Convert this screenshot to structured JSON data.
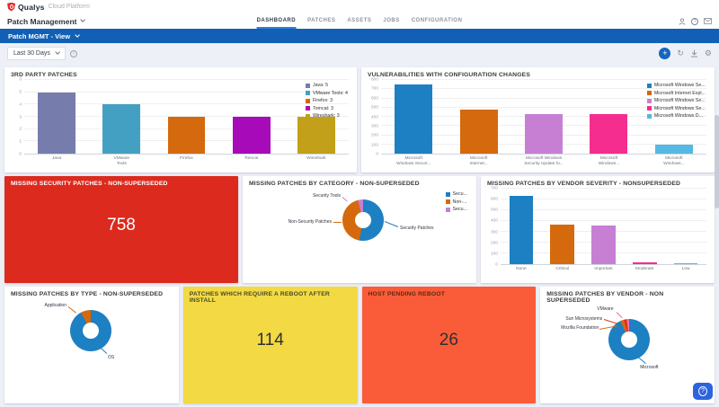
{
  "header": {
    "brand": "Qualys",
    "brand_suffix": "Cloud Platform",
    "app_name": "Patch Management",
    "tabs": [
      {
        "label": "DASHBOARD",
        "active": true
      },
      {
        "label": "PATCHES",
        "active": false
      },
      {
        "label": "ASSETS",
        "active": false
      },
      {
        "label": "JOBS",
        "active": false
      },
      {
        "label": "CONFIGURATION",
        "active": false
      }
    ],
    "view_bar": "Patch MGMT - View",
    "help_icon": "?"
  },
  "filter": {
    "date_range": "Last 30 Days",
    "info_icon": "i",
    "add_label": "+",
    "refresh_icon": "↻",
    "gear_icon": "⚙"
  },
  "colors": {
    "view_bar_blue": "#1160b6",
    "tab_active_underline": "#2e7fd6",
    "series_blue": "#1d80c3",
    "series_orange": "#d5690d",
    "series_orchid": "#c77fd4",
    "series_pink": "#f52d8e",
    "series_cyan": "#55b9e3"
  },
  "widgets": {
    "third_party": {
      "title": "3RD PARTY PATCHES",
      "type": "bar",
      "ymax": 6,
      "yticks": [
        0,
        1,
        2,
        3,
        4,
        5,
        6
      ],
      "categories": [
        "Java",
        "VMware\nTools",
        "Firefox",
        "Tomcat",
        "Wireshark"
      ],
      "values": [
        5,
        4,
        3,
        3,
        3
      ],
      "colors": [
        "#767cab",
        "#44a0c3",
        "#d5690d",
        "#a70ab8",
        "#c2a019"
      ],
      "legend": [
        "Java: 5",
        "VMware Tools: 4",
        "Firefox: 3",
        "Tomcat: 3",
        "Wireshark: 3"
      ]
    },
    "vuln_config": {
      "title": "VULNERABILITIES WITH CONFIGURATION CHANGES",
      "type": "bar",
      "ymax": 800,
      "yticks": [
        0,
        100,
        200,
        300,
        400,
        500,
        600,
        700,
        800
      ],
      "categories": [
        "Microsoft\nWindows Securi...",
        "Microsoft\nInternet...",
        "Microsoft Windows\nSecurity Update fo...",
        "Microsoft\nWindows...",
        "Microsoft\nWindows..."
      ],
      "values": [
        750,
        480,
        430,
        430,
        100
      ],
      "colors": [
        "#1d80c3",
        "#d5690d",
        "#c77fd4",
        "#f52d8e",
        "#55b9e3"
      ],
      "legend": [
        "Microsoft Windows Se...",
        "Microsoft Internet Expl...",
        "Microsoft Windows Se...",
        "Microsoft Windows Se...",
        "Microsoft Windows D..."
      ]
    },
    "missing_security": {
      "title": "MISSING SECURITY PATCHES - NON-SUPERSEDED",
      "value": "758",
      "bg": "#dc2a1e",
      "title_color": "#ffffff",
      "num_color": "#ffffff"
    },
    "category": {
      "title": "MISSING PATCHES BY CATEGORY - NON-SUPERSEDED",
      "type": "donut",
      "slices": [
        {
          "label": "Security Patches",
          "value": 53,
          "color": "#1d80c3"
        },
        {
          "label": "Non-Security Patches",
          "value": 43,
          "color": "#d5690d"
        },
        {
          "label": "Security Tools",
          "value": 4,
          "color": "#c77fd4"
        }
      ],
      "legend": [
        "Secu...",
        "Non-...",
        "Secu..."
      ],
      "legend_colors": [
        "#1d80c3",
        "#d5690d",
        "#c77fd4"
      ]
    },
    "severity": {
      "title": "MISSING PATCHES BY VENDOR SEVERITY - NONSUPERSEDED",
      "type": "bar",
      "ymax": 700,
      "yticks": [
        0,
        100,
        200,
        300,
        400,
        500,
        600,
        700
      ],
      "categories": [
        "None",
        "Critical",
        "Important",
        "Moderate",
        "Low"
      ],
      "values": [
        630,
        370,
        360,
        15,
        10
      ],
      "colors": [
        "#1d80c3",
        "#d5690d",
        "#c77fd4",
        "#f52d8e",
        "#55b9e3"
      ]
    },
    "type": {
      "title": "MISSING PATCHES BY TYPE - NON-SUPERSEDED",
      "type": "donut",
      "slices": [
        {
          "label": "OS",
          "value": 92,
          "color": "#1d80c3"
        },
        {
          "label": "Application",
          "value": 8,
          "color": "#d5690d"
        }
      ]
    },
    "reboot_patches": {
      "title": "PATCHES WHICH REQUIRE A REBOOT AFTER INSTALL",
      "value": "114",
      "bg": "#f3d943",
      "title_color": "#494a2e",
      "num_color": "#303030"
    },
    "host_pending": {
      "title": "HOST PENDING REBOOT",
      "value": "26",
      "bg": "#fa5c39",
      "title_color": "#5b2a16",
      "num_color": "#2f2f2f"
    },
    "vendor": {
      "title": "MISSING PATCHES BY VENDOR - NON SUPERSEDED",
      "type": "donut",
      "slices": [
        {
          "label": "Microsoft",
          "value": 93,
          "color": "#1d80c3"
        },
        {
          "label": "Mozilla Foundation",
          "value": 3,
          "color": "#d5690d"
        },
        {
          "label": "Sun Microsystems",
          "value": 2,
          "color": "#dc2a1e"
        },
        {
          "label": "VMware",
          "value": 2,
          "color": "#f06eaa"
        }
      ]
    }
  }
}
